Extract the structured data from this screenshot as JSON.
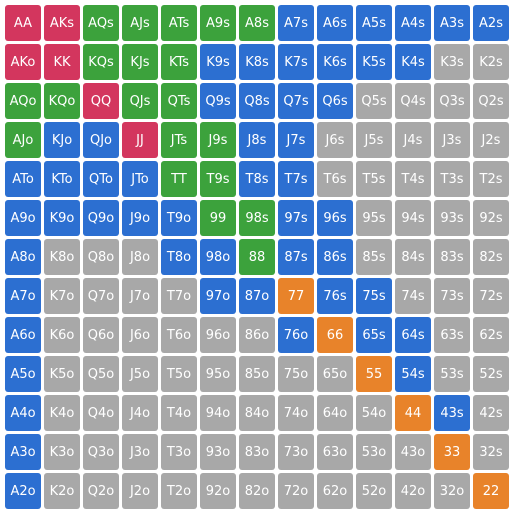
{
  "grid": {
    "rows": [
      [
        {
          "label": "AA",
          "color": "#d3365e"
        },
        {
          "label": "AKs",
          "color": "#d3365e"
        },
        {
          "label": "AQs",
          "color": "#3ca23c"
        },
        {
          "label": "AJs",
          "color": "#3ca23c"
        },
        {
          "label": "ATs",
          "color": "#3ca23c"
        },
        {
          "label": "A9s",
          "color": "#3ca23c"
        },
        {
          "label": "A8s",
          "color": "#3ca23c"
        },
        {
          "label": "A7s",
          "color": "#2c6fd1"
        },
        {
          "label": "A6s",
          "color": "#2c6fd1"
        },
        {
          "label": "A5s",
          "color": "#2c6fd1"
        },
        {
          "label": "A4s",
          "color": "#2c6fd1"
        },
        {
          "label": "A3s",
          "color": "#2c6fd1"
        },
        {
          "label": "A2s",
          "color": "#2c6fd1"
        }
      ],
      [
        {
          "label": "AKo",
          "color": "#d3365e"
        },
        {
          "label": "KK",
          "color": "#d3365e"
        },
        {
          "label": "KQs",
          "color": "#3ca23c"
        },
        {
          "label": "KJs",
          "color": "#3ca23c"
        },
        {
          "label": "KTs",
          "color": "#3ca23c"
        },
        {
          "label": "K9s",
          "color": "#2c6fd1"
        },
        {
          "label": "K8s",
          "color": "#2c6fd1"
        },
        {
          "label": "K7s",
          "color": "#2c6fd1"
        },
        {
          "label": "K6s",
          "color": "#2c6fd1"
        },
        {
          "label": "K5s",
          "color": "#2c6fd1"
        },
        {
          "label": "K4s",
          "color": "#2c6fd1"
        },
        {
          "label": "K3s",
          "color": "#a8a8a8"
        },
        {
          "label": "K2s",
          "color": "#a8a8a8"
        }
      ],
      [
        {
          "label": "AQo",
          "color": "#3ca23c"
        },
        {
          "label": "KQo",
          "color": "#3ca23c"
        },
        {
          "label": "QQ",
          "color": "#d3365e"
        },
        {
          "label": "QJs",
          "color": "#3ca23c"
        },
        {
          "label": "QTs",
          "color": "#3ca23c"
        },
        {
          "label": "Q9s",
          "color": "#2c6fd1"
        },
        {
          "label": "Q8s",
          "color": "#2c6fd1"
        },
        {
          "label": "Q7s",
          "color": "#2c6fd1"
        },
        {
          "label": "Q6s",
          "color": "#2c6fd1"
        },
        {
          "label": "Q5s",
          "color": "#a8a8a8"
        },
        {
          "label": "Q4s",
          "color": "#a8a8a8"
        },
        {
          "label": "Q3s",
          "color": "#a8a8a8"
        },
        {
          "label": "Q2s",
          "color": "#a8a8a8"
        }
      ],
      [
        {
          "label": "AJo",
          "color": "#3ca23c"
        },
        {
          "label": "KJo",
          "color": "#2c6fd1"
        },
        {
          "label": "QJo",
          "color": "#2c6fd1"
        },
        {
          "label": "JJ",
          "color": "#d3365e"
        },
        {
          "label": "JTs",
          "color": "#3ca23c"
        },
        {
          "label": "J9s",
          "color": "#3ca23c"
        },
        {
          "label": "J8s",
          "color": "#2c6fd1"
        },
        {
          "label": "J7s",
          "color": "#2c6fd1"
        },
        {
          "label": "J6s",
          "color": "#a8a8a8"
        },
        {
          "label": "J5s",
          "color": "#a8a8a8"
        },
        {
          "label": "J4s",
          "color": "#a8a8a8"
        },
        {
          "label": "J3s",
          "color": "#a8a8a8"
        },
        {
          "label": "J2s",
          "color": "#a8a8a8"
        }
      ],
      [
        {
          "label": "ATo",
          "color": "#2c6fd1"
        },
        {
          "label": "KTo",
          "color": "#2c6fd1"
        },
        {
          "label": "QTo",
          "color": "#2c6fd1"
        },
        {
          "label": "JTo",
          "color": "#2c6fd1"
        },
        {
          "label": "TT",
          "color": "#3ca23c"
        },
        {
          "label": "T9s",
          "color": "#3ca23c"
        },
        {
          "label": "T8s",
          "color": "#2c6fd1"
        },
        {
          "label": "T7s",
          "color": "#2c6fd1"
        },
        {
          "label": "T6s",
          "color": "#a8a8a8"
        },
        {
          "label": "T5s",
          "color": "#a8a8a8"
        },
        {
          "label": "T4s",
          "color": "#a8a8a8"
        },
        {
          "label": "T3s",
          "color": "#a8a8a8"
        },
        {
          "label": "T2s",
          "color": "#a8a8a8"
        }
      ],
      [
        {
          "label": "A9o",
          "color": "#2c6fd1"
        },
        {
          "label": "K9o",
          "color": "#2c6fd1"
        },
        {
          "label": "Q9o",
          "color": "#2c6fd1"
        },
        {
          "label": "J9o",
          "color": "#2c6fd1"
        },
        {
          "label": "T9o",
          "color": "#2c6fd1"
        },
        {
          "label": "99",
          "color": "#3ca23c"
        },
        {
          "label": "98s",
          "color": "#3ca23c"
        },
        {
          "label": "97s",
          "color": "#2c6fd1"
        },
        {
          "label": "96s",
          "color": "#2c6fd1"
        },
        {
          "label": "95s",
          "color": "#a8a8a8"
        },
        {
          "label": "94s",
          "color": "#a8a8a8"
        },
        {
          "label": "93s",
          "color": "#a8a8a8"
        },
        {
          "label": "92s",
          "color": "#a8a8a8"
        }
      ],
      [
        {
          "label": "A8o",
          "color": "#2c6fd1"
        },
        {
          "label": "K8o",
          "color": "#a8a8a8"
        },
        {
          "label": "Q8o",
          "color": "#a8a8a8"
        },
        {
          "label": "J8o",
          "color": "#a8a8a8"
        },
        {
          "label": "T8o",
          "color": "#2c6fd1"
        },
        {
          "label": "98o",
          "color": "#2c6fd1"
        },
        {
          "label": "88",
          "color": "#3ca23c"
        },
        {
          "label": "87s",
          "color": "#2c6fd1"
        },
        {
          "label": "86s",
          "color": "#2c6fd1"
        },
        {
          "label": "85s",
          "color": "#a8a8a8"
        },
        {
          "label": "84s",
          "color": "#a8a8a8"
        },
        {
          "label": "83s",
          "color": "#a8a8a8"
        },
        {
          "label": "82s",
          "color": "#a8a8a8"
        }
      ],
      [
        {
          "label": "A7o",
          "color": "#2c6fd1"
        },
        {
          "label": "K7o",
          "color": "#a8a8a8"
        },
        {
          "label": "Q7o",
          "color": "#a8a8a8"
        },
        {
          "label": "J7o",
          "color": "#a8a8a8"
        },
        {
          "label": "T7o",
          "color": "#a8a8a8"
        },
        {
          "label": "97o",
          "color": "#2c6fd1"
        },
        {
          "label": "87o",
          "color": "#2c6fd1"
        },
        {
          "label": "77",
          "color": "#e8832a"
        },
        {
          "label": "76s",
          "color": "#2c6fd1"
        },
        {
          "label": "75s",
          "color": "#2c6fd1"
        },
        {
          "label": "74s",
          "color": "#a8a8a8"
        },
        {
          "label": "73s",
          "color": "#a8a8a8"
        },
        {
          "label": "72s",
          "color": "#a8a8a8"
        }
      ],
      [
        {
          "label": "A6o",
          "color": "#2c6fd1"
        },
        {
          "label": "K6o",
          "color": "#a8a8a8"
        },
        {
          "label": "Q6o",
          "color": "#a8a8a8"
        },
        {
          "label": "J6o",
          "color": "#a8a8a8"
        },
        {
          "label": "T6o",
          "color": "#a8a8a8"
        },
        {
          "label": "96o",
          "color": "#a8a8a8"
        },
        {
          "label": "86o",
          "color": "#a8a8a8"
        },
        {
          "label": "76o",
          "color": "#2c6fd1"
        },
        {
          "label": "66",
          "color": "#e8832a"
        },
        {
          "label": "65s",
          "color": "#2c6fd1"
        },
        {
          "label": "64s",
          "color": "#2c6fd1"
        },
        {
          "label": "63s",
          "color": "#a8a8a8"
        },
        {
          "label": "62s",
          "color": "#a8a8a8"
        }
      ],
      [
        {
          "label": "A5o",
          "color": "#2c6fd1"
        },
        {
          "label": "K5o",
          "color": "#a8a8a8"
        },
        {
          "label": "Q5o",
          "color": "#a8a8a8"
        },
        {
          "label": "J5o",
          "color": "#a8a8a8"
        },
        {
          "label": "T5o",
          "color": "#a8a8a8"
        },
        {
          "label": "95o",
          "color": "#a8a8a8"
        },
        {
          "label": "85o",
          "color": "#a8a8a8"
        },
        {
          "label": "75o",
          "color": "#a8a8a8"
        },
        {
          "label": "65o",
          "color": "#a8a8a8"
        },
        {
          "label": "55",
          "color": "#e8832a"
        },
        {
          "label": "54s",
          "color": "#2c6fd1"
        },
        {
          "label": "53s",
          "color": "#a8a8a8"
        },
        {
          "label": "52s",
          "color": "#a8a8a8"
        }
      ],
      [
        {
          "label": "A4o",
          "color": "#2c6fd1"
        },
        {
          "label": "K4o",
          "color": "#a8a8a8"
        },
        {
          "label": "Q4o",
          "color": "#a8a8a8"
        },
        {
          "label": "J4o",
          "color": "#a8a8a8"
        },
        {
          "label": "T4o",
          "color": "#a8a8a8"
        },
        {
          "label": "94o",
          "color": "#a8a8a8"
        },
        {
          "label": "84o",
          "color": "#a8a8a8"
        },
        {
          "label": "74o",
          "color": "#a8a8a8"
        },
        {
          "label": "64o",
          "color": "#a8a8a8"
        },
        {
          "label": "54o",
          "color": "#a8a8a8"
        },
        {
          "label": "44",
          "color": "#e8832a"
        },
        {
          "label": "43s",
          "color": "#2c6fd1"
        },
        {
          "label": "42s",
          "color": "#a8a8a8"
        }
      ],
      [
        {
          "label": "A3o",
          "color": "#2c6fd1"
        },
        {
          "label": "K3o",
          "color": "#a8a8a8"
        },
        {
          "label": "Q3o",
          "color": "#a8a8a8"
        },
        {
          "label": "J3o",
          "color": "#a8a8a8"
        },
        {
          "label": "T3o",
          "color": "#a8a8a8"
        },
        {
          "label": "93o",
          "color": "#a8a8a8"
        },
        {
          "label": "83o",
          "color": "#a8a8a8"
        },
        {
          "label": "73o",
          "color": "#a8a8a8"
        },
        {
          "label": "63o",
          "color": "#a8a8a8"
        },
        {
          "label": "53o",
          "color": "#a8a8a8"
        },
        {
          "label": "43o",
          "color": "#a8a8a8"
        },
        {
          "label": "33",
          "color": "#e8832a"
        },
        {
          "label": "32s",
          "color": "#a8a8a8"
        }
      ],
      [
        {
          "label": "A2o",
          "color": "#2c6fd1"
        },
        {
          "label": "K2o",
          "color": "#a8a8a8"
        },
        {
          "label": "Q2o",
          "color": "#a8a8a8"
        },
        {
          "label": "J2o",
          "color": "#a8a8a8"
        },
        {
          "label": "T2o",
          "color": "#a8a8a8"
        },
        {
          "label": "92o",
          "color": "#a8a8a8"
        },
        {
          "label": "82o",
          "color": "#a8a8a8"
        },
        {
          "label": "72o",
          "color": "#a8a8a8"
        },
        {
          "label": "62o",
          "color": "#a8a8a8"
        },
        {
          "label": "52o",
          "color": "#a8a8a8"
        },
        {
          "label": "42o",
          "color": "#a8a8a8"
        },
        {
          "label": "32o",
          "color": "#a8a8a8"
        },
        {
          "label": "22",
          "color": "#e8832a"
        }
      ]
    ]
  }
}
